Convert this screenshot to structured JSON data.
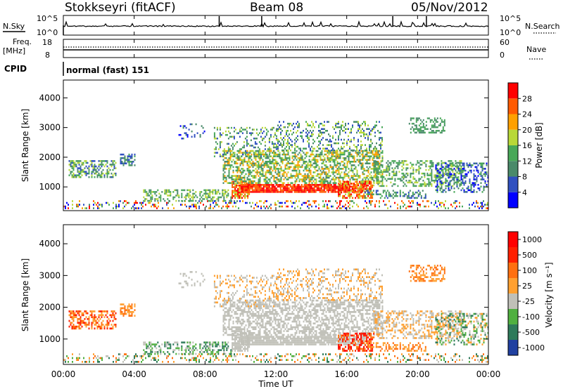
{
  "header": {
    "station": "Stokkseyri (fitACF)",
    "beam": "Beam 08",
    "date": "05/Nov/2012"
  },
  "nsky_panel": {
    "left_label": "N.Sky",
    "left_ticks": [
      "10^5",
      "10^0"
    ],
    "right_label": "N.Search",
    "right_ticks": [
      "10^5",
      "10^0"
    ]
  },
  "freq_panel": {
    "left_label_line1": "Freq.",
    "left_label_line2": "[MHz]",
    "left_ticks": [
      "18",
      "8"
    ],
    "right_label": "Nave",
    "right_ticks": [
      "60",
      "0"
    ]
  },
  "cpid": {
    "label": "CPID",
    "value": "normal (fast) 151"
  },
  "colors": {
    "power": [
      "#0000ff",
      "#3050c0",
      "#4a8a6a",
      "#48a858",
      "#b8d838",
      "#ffa000",
      "#ff5a00",
      "#ff0000"
    ],
    "velocity": [
      "#2040a0",
      "#2e7a5a",
      "#50b040",
      "#c0c0b8",
      "#ffa030",
      "#ff7010",
      "#ff2000",
      "#ff0000"
    ]
  },
  "chart_data": [
    {
      "type": "heatmap",
      "name": "power",
      "ylabel": "Slant Range [km]",
      "yticks": [
        "4000",
        "3000",
        "2000",
        "1000"
      ],
      "ylim": [
        200,
        4600
      ],
      "xlim_hours": [
        0,
        24
      ],
      "colorbar": {
        "label": "Power [dB]",
        "ticks": [
          "28",
          "24",
          "20",
          "16",
          "12",
          "8",
          "4"
        ],
        "range": [
          0,
          32
        ]
      }
    },
    {
      "type": "heatmap",
      "name": "velocity",
      "ylabel": "Slant Range [km]",
      "yticks": [
        "4000",
        "3000",
        "2000",
        "1000"
      ],
      "ylim": [
        200,
        4600
      ],
      "xlim_hours": [
        0,
        24
      ],
      "colorbar": {
        "label": "Velocity [m s⁻¹]",
        "ticks": [
          "1000",
          "500",
          "100",
          "25",
          "-25",
          "-100",
          "-500",
          "-1000"
        ]
      }
    }
  ],
  "xaxis": {
    "ticks": [
      "00:00",
      "04:00",
      "08:00",
      "12:00",
      "16:00",
      "20:00",
      "00:00"
    ],
    "label": "Time UT"
  }
}
